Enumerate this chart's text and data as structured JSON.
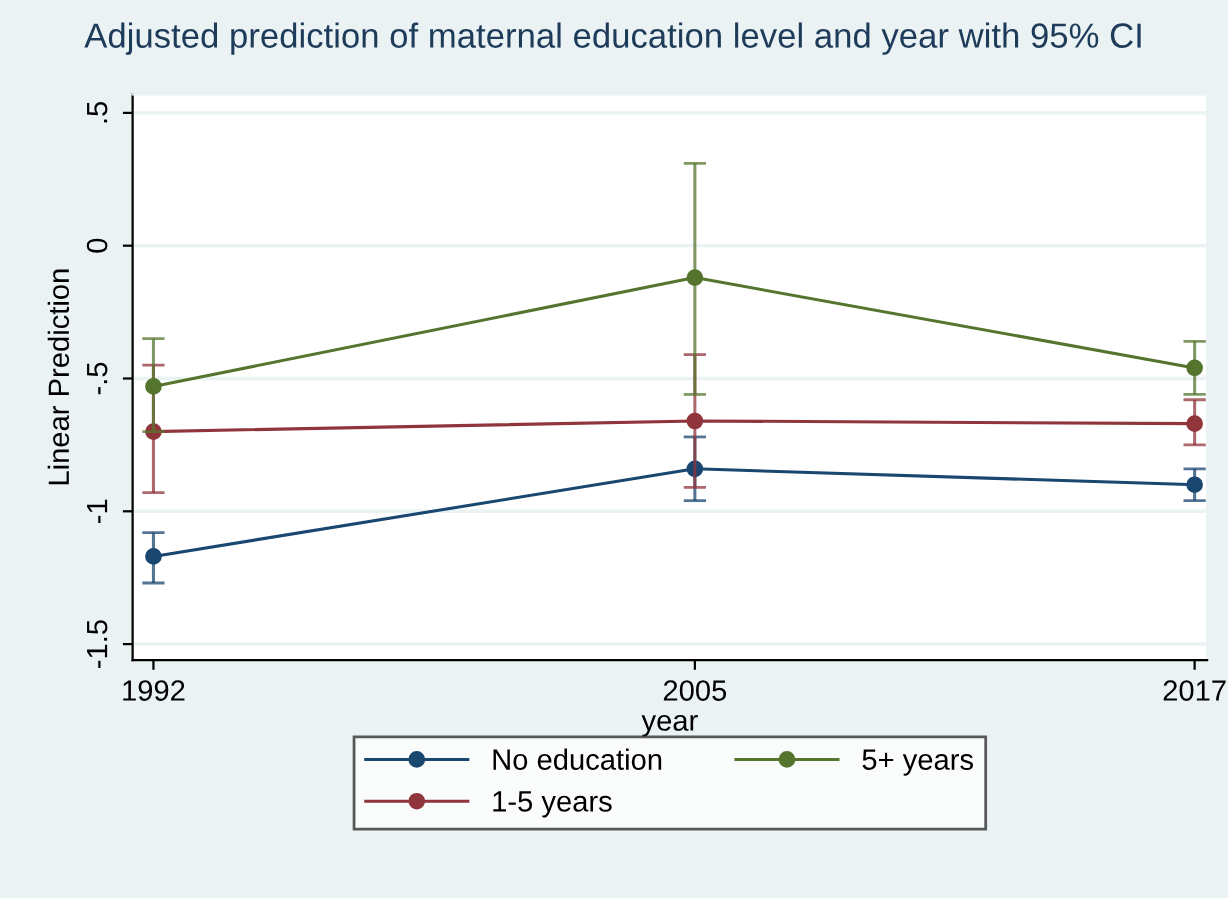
{
  "chart_data": {
    "type": "line",
    "title": "Adjusted prediction of maternal education level and year with 95% CI",
    "xlabel": "year",
    "ylabel": "Linear Prediction",
    "x": [
      1992,
      2005,
      2017
    ],
    "series": [
      {
        "name": "No education",
        "color": "#1a476f",
        "values": [
          -1.17,
          -0.84,
          -0.9
        ],
        "errors": [
          [
            -1.27,
            -1.08
          ],
          [
            -0.96,
            -0.72
          ],
          [
            -0.96,
            -0.84
          ]
        ]
      },
      {
        "name": "1-5 years",
        "color": "#90353b",
        "values": [
          -0.7,
          -0.66,
          -0.67
        ],
        "errors": [
          [
            -0.93,
            -0.45
          ],
          [
            -0.91,
            -0.41
          ],
          [
            -0.75,
            -0.58
          ]
        ]
      },
      {
        "name": "5+ years",
        "color": "#55752f",
        "values": [
          -0.53,
          -0.12,
          -0.46
        ],
        "errors": [
          [
            -0.7,
            -0.35
          ],
          [
            -0.56,
            0.31
          ],
          [
            -0.56,
            -0.36
          ]
        ]
      }
    ],
    "xlim": [
      1991.5,
      2017.3
    ],
    "xticks": [
      1992,
      2005,
      2017
    ],
    "ylim": [
      -1.56,
      0.57
    ],
    "yticks": [
      {
        "value": 0.5,
        "label": ".5"
      },
      0,
      {
        "value": -0.5,
        "label": "-.5"
      },
      -1,
      {
        "value": -1.5,
        "label": "-1.5"
      }
    ],
    "grid": "y",
    "legend": "bottom",
    "marker": "circle",
    "line_style": "solid"
  }
}
